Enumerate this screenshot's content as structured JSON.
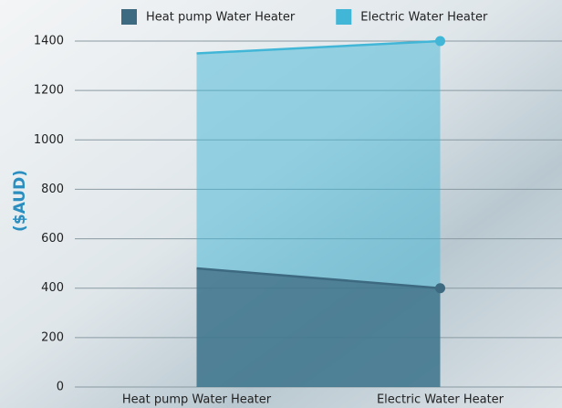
{
  "chart_data": {
    "type": "area",
    "y_label": "($AUD)",
    "categories": [
      "Heat pump Water Heater",
      "Electric Water Heater"
    ],
    "series": [
      {
        "name": "Heat pump Water Heater",
        "color": "#3d6a80",
        "values": [
          480,
          400
        ]
      },
      {
        "name": "Electric Water Heater",
        "color": "#42b6d6",
        "values": [
          1350,
          1400
        ]
      }
    ],
    "ylim": [
      0,
      1400
    ],
    "yticks": [
      0,
      200,
      400,
      600,
      800,
      1000,
      1200,
      1400
    ],
    "grid": true,
    "legend": "top"
  }
}
